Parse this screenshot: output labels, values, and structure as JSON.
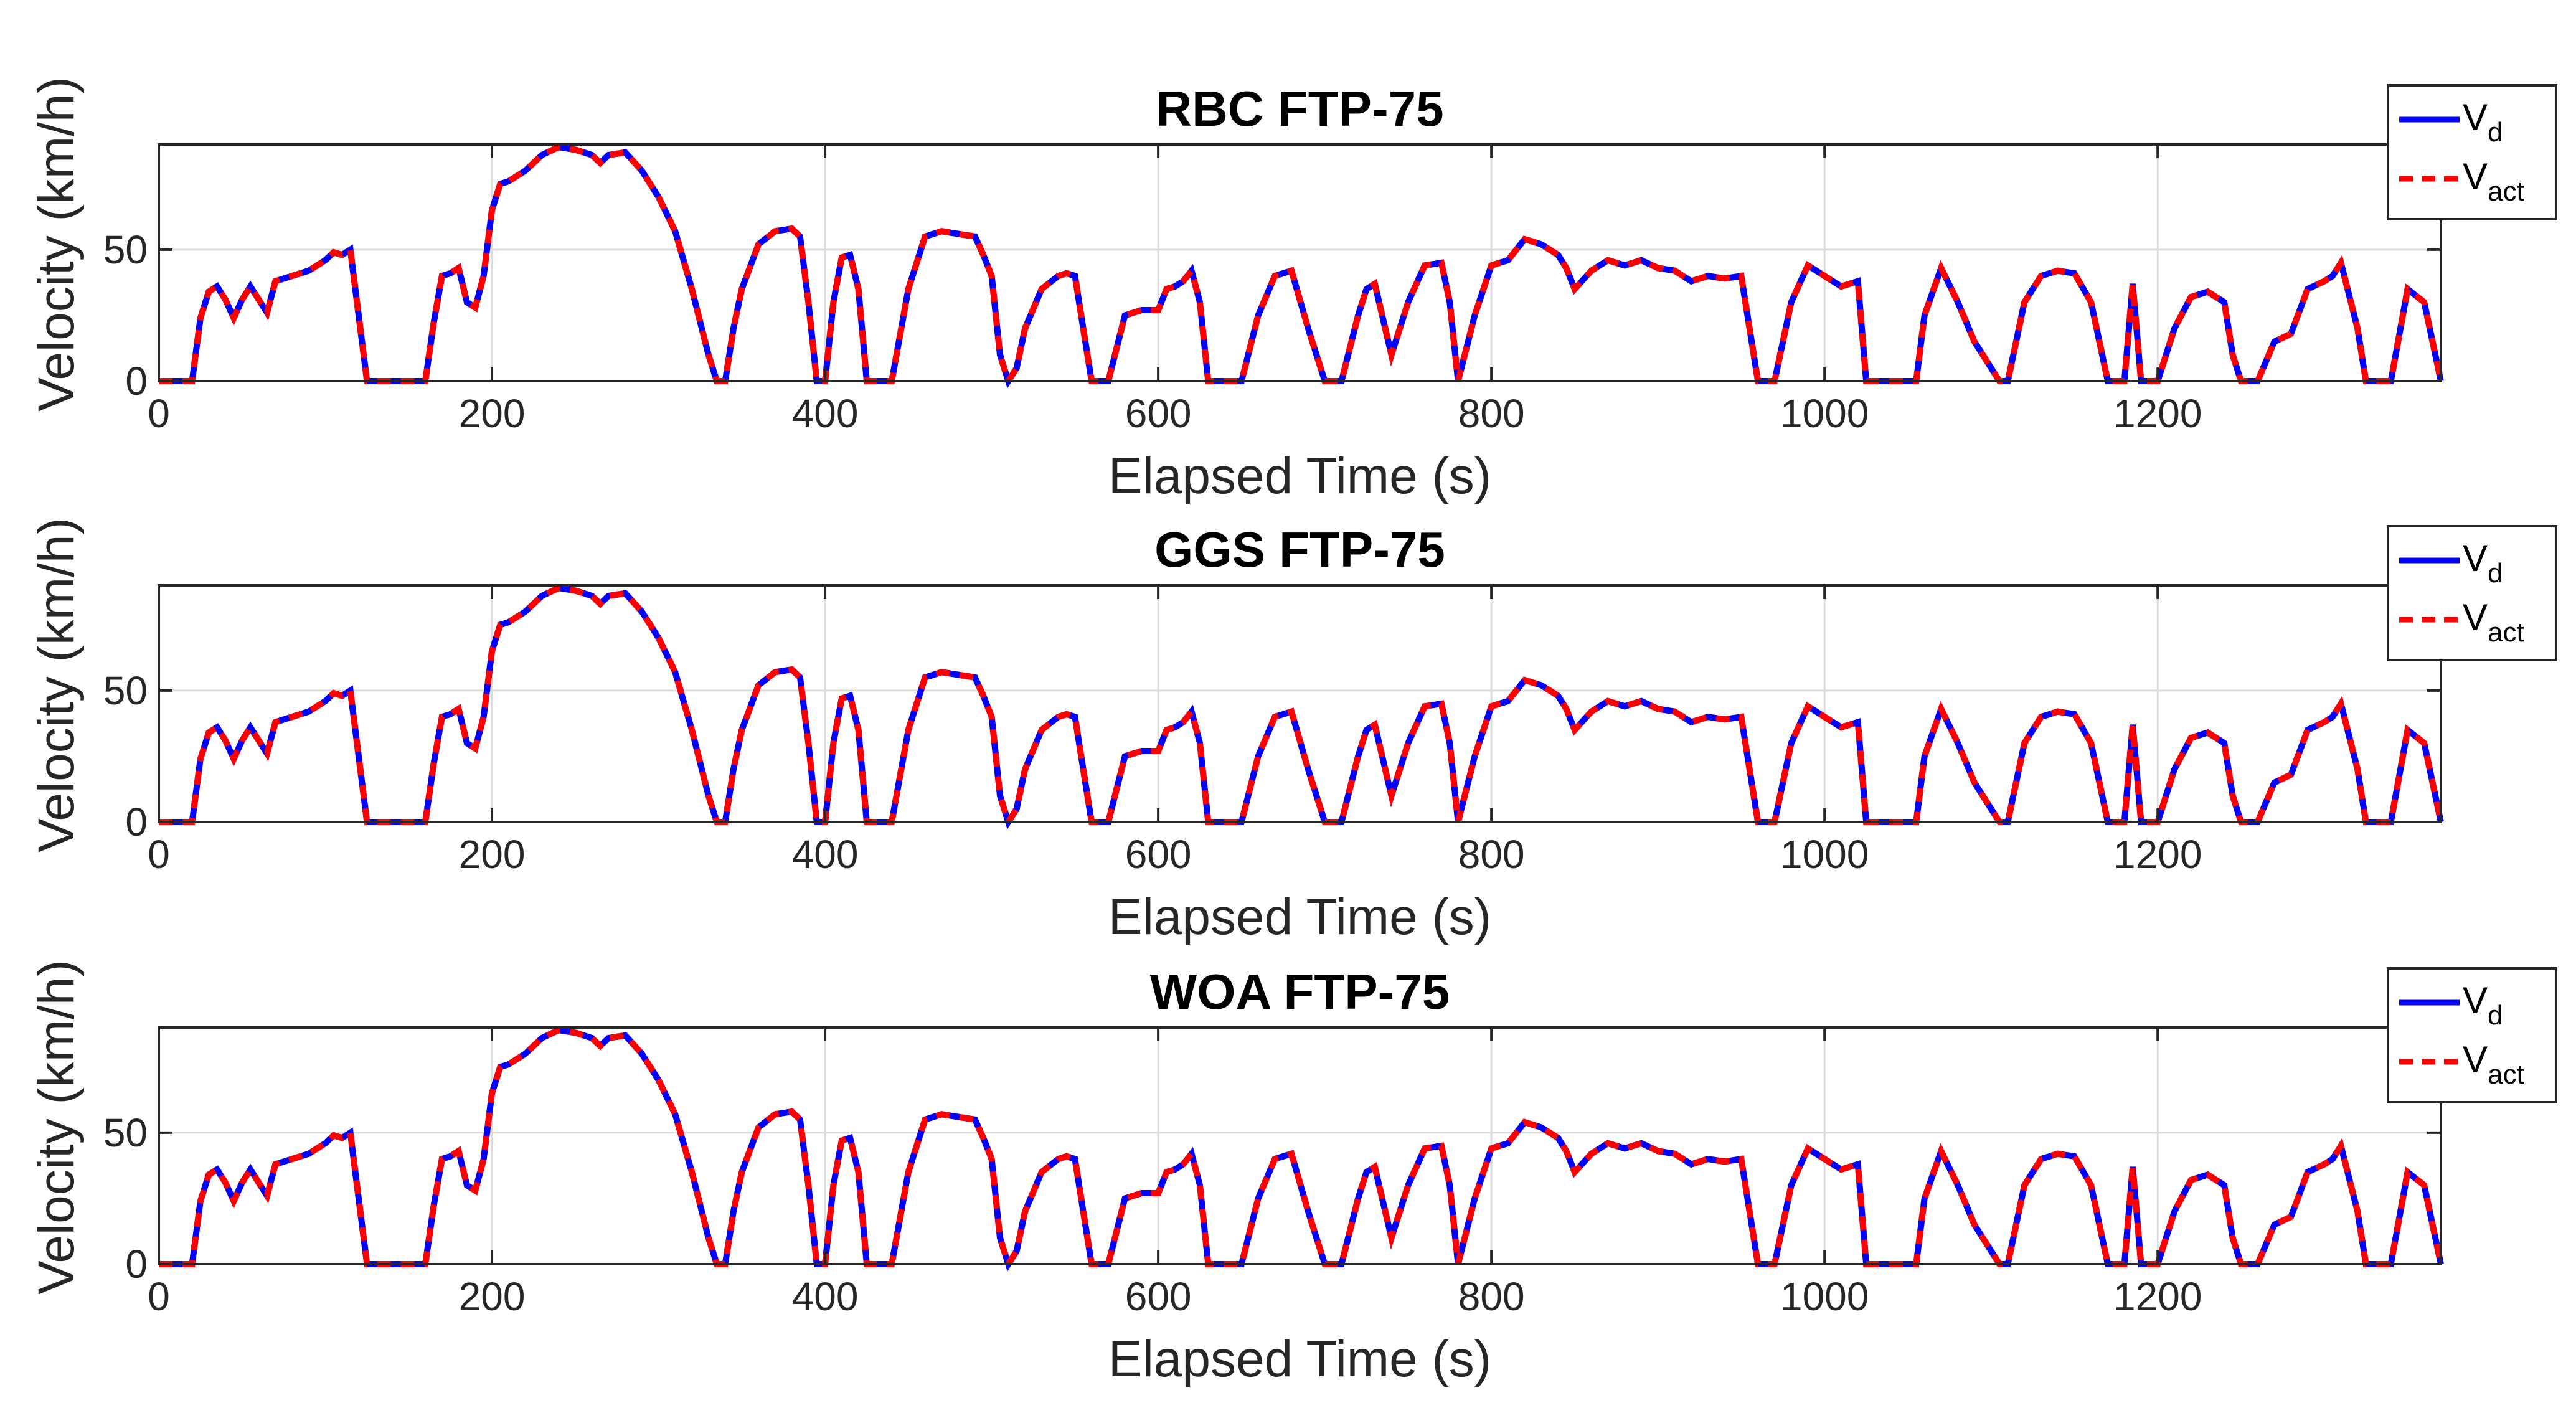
{
  "chart_data": [
    {
      "type": "line",
      "title": "RBC FTP-75",
      "xlabel": "Elapsed Time (s)",
      "ylabel": "Velocity (km/h)",
      "xlim": [
        0,
        1370
      ],
      "ylim": [
        0,
        90
      ],
      "xticks": [
        0,
        200,
        400,
        600,
        800,
        1000,
        1200
      ],
      "yticks": [
        0,
        50
      ],
      "grid": true,
      "legend_position": "top-right-outside",
      "series": [
        {
          "name": "V",
          "name_subscript": "d",
          "color": "#0000ff",
          "style": "solid"
        },
        {
          "name": "V",
          "name_subscript": "act",
          "color": "#ff0000",
          "style": "dashed"
        }
      ]
    },
    {
      "type": "line",
      "title": "GGS FTP-75",
      "xlabel": "Elapsed Time (s)",
      "ylabel": "Velocity (km/h)",
      "xlim": [
        0,
        1370
      ],
      "ylim": [
        0,
        90
      ],
      "xticks": [
        0,
        200,
        400,
        600,
        800,
        1000,
        1200
      ],
      "yticks": [
        0,
        50
      ],
      "grid": true,
      "legend_position": "top-right-outside",
      "series": [
        {
          "name": "V",
          "name_subscript": "d",
          "color": "#0000ff",
          "style": "solid"
        },
        {
          "name": "V",
          "name_subscript": "act",
          "color": "#ff0000",
          "style": "dashed"
        }
      ]
    },
    {
      "type": "line",
      "title": "WOA FTP-75",
      "xlabel": "Elapsed Time (s)",
      "ylabel": "Velocity (km/h)",
      "xlim": [
        0,
        1370
      ],
      "ylim": [
        0,
        90
      ],
      "xticks": [
        0,
        200,
        400,
        600,
        800,
        1000,
        1200
      ],
      "yticks": [
        0,
        50
      ],
      "grid": true,
      "legend_position": "top-right-outside",
      "series": [
        {
          "name": "V",
          "name_subscript": "d",
          "color": "#0000ff",
          "style": "solid"
        },
        {
          "name": "V",
          "name_subscript": "act",
          "color": "#ff0000",
          "style": "dashed"
        }
      ]
    }
  ],
  "profile": {
    "t": [
      0,
      20,
      25,
      30,
      35,
      40,
      45,
      50,
      55,
      60,
      65,
      70,
      80,
      90,
      100,
      105,
      110,
      115,
      125,
      160,
      165,
      170,
      175,
      180,
      185,
      190,
      195,
      200,
      205,
      210,
      220,
      230,
      240,
      250,
      260,
      265,
      270,
      280,
      290,
      300,
      310,
      320,
      330,
      335,
      340,
      345,
      350,
      360,
      370,
      380,
      385,
      390,
      395,
      400,
      405,
      410,
      415,
      420,
      425,
      430,
      440,
      450,
      460,
      470,
      480,
      490,
      495,
      500,
      505,
      510,
      515,
      520,
      530,
      540,
      545,
      550,
      555,
      560,
      565,
      570,
      580,
      590,
      600,
      605,
      610,
      615,
      620,
      625,
      630,
      640,
      650,
      660,
      670,
      680,
      690,
      700,
      710,
      720,
      725,
      730,
      740,
      750,
      760,
      770,
      775,
      780,
      790,
      800,
      810,
      820,
      830,
      840,
      845,
      850,
      860,
      870,
      880,
      890,
      900,
      910,
      920,
      930,
      940,
      950,
      955,
      960,
      970,
      980,
      990,
      1000,
      1010,
      1020,
      1025,
      1050,
      1055,
      1060,
      1070,
      1080,
      1090,
      1100,
      1105,
      1110,
      1120,
      1130,
      1140,
      1150,
      1160,
      1170,
      1175,
      1180,
      1185,
      1190,
      1200,
      1210,
      1220,
      1230,
      1240,
      1245,
      1250,
      1260,
      1270,
      1280,
      1290,
      1300,
      1305,
      1310,
      1320,
      1325,
      1330,
      1340,
      1350,
      1360,
      1370
    ],
    "v": [
      0,
      0,
      24,
      34,
      36,
      31,
      24,
      31,
      36,
      31,
      26,
      38,
      40,
      42,
      46,
      49,
      48,
      50,
      0,
      0,
      22,
      40,
      41,
      43,
      30,
      28,
      40,
      65,
      75,
      76,
      80,
      86,
      89,
      88,
      86,
      83,
      86,
      87,
      80,
      70,
      57,
      35,
      10,
      0,
      0,
      20,
      35,
      52,
      57,
      58,
      55,
      30,
      0,
      0,
      30,
      47,
      48,
      35,
      0,
      0,
      0,
      35,
      55,
      57,
      56,
      55,
      48,
      40,
      10,
      0,
      5,
      20,
      35,
      40,
      41,
      40,
      20,
      0,
      0,
      0,
      25,
      27,
      27,
      35,
      36,
      38,
      42,
      30,
      0,
      0,
      0,
      25,
      40,
      42,
      20,
      0,
      0,
      25,
      35,
      37,
      10,
      30,
      44,
      45,
      30,
      0,
      25,
      44,
      46,
      54,
      52,
      48,
      43,
      35,
      42,
      46,
      44,
      46,
      43,
      42,
      38,
      40,
      39,
      40,
      20,
      0,
      0,
      30,
      44,
      40,
      36,
      38,
      0,
      0,
      0,
      25,
      43,
      30,
      15,
      5,
      0,
      0,
      30,
      40,
      42,
      41,
      30,
      0,
      0,
      0,
      37,
      0,
      0,
      20,
      32,
      34,
      30,
      10,
      0,
      0,
      15,
      18,
      35,
      38,
      40,
      45,
      20,
      0,
      0,
      0,
      35,
      30,
      0,
      0
    ]
  }
}
